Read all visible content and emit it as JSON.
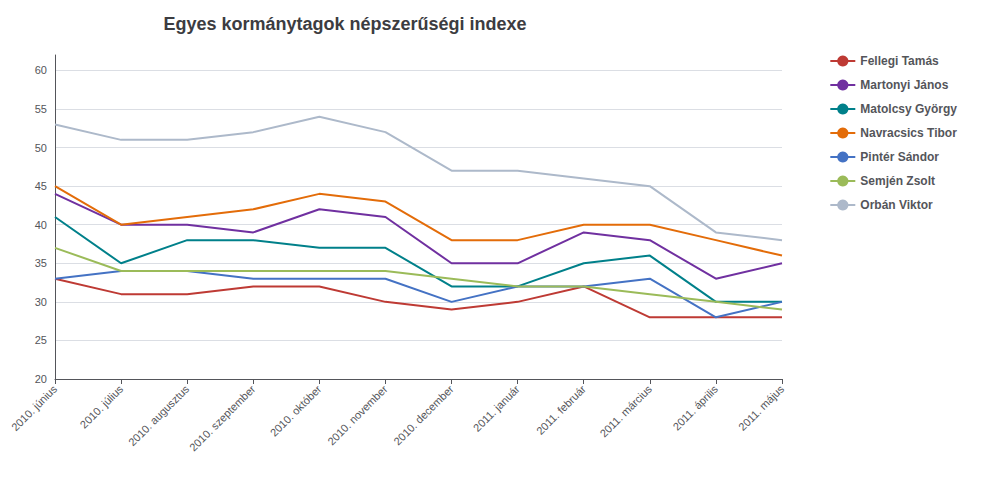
{
  "chart_data": {
    "type": "line",
    "title": "Egyes kormánytagok népszerűségi indexe",
    "categories": [
      "2010. június",
      "2010. július",
      "2010. augusztus",
      "2010. szeptember",
      "2010. október",
      "2010. november",
      "2010. december",
      "2011. január",
      "2011. február",
      "2011. március",
      "2011. április",
      "2011. május"
    ],
    "series": [
      {
        "name": "Fellegi Tamás",
        "color": "#be3a34",
        "values": [
          33,
          31,
          31,
          32,
          32,
          30,
          29,
          30,
          32,
          28,
          28,
          28
        ]
      },
      {
        "name": "Martonyi János",
        "color": "#7030a0",
        "values": [
          44,
          40,
          40,
          39,
          42,
          41,
          35,
          35,
          39,
          38,
          33,
          35
        ]
      },
      {
        "name": "Matolcsy György",
        "color": "#00808a",
        "values": [
          41,
          35,
          38,
          38,
          37,
          37,
          32,
          32,
          35,
          36,
          30,
          30
        ]
      },
      {
        "name": "Navracsics Tibor",
        "color": "#e36c09",
        "values": [
          45,
          40,
          41,
          42,
          44,
          43,
          38,
          38,
          40,
          40,
          38,
          36
        ]
      },
      {
        "name": "Pintér Sándor",
        "color": "#4472c4",
        "values": [
          33,
          34,
          34,
          33,
          33,
          33,
          30,
          32,
          32,
          33,
          28,
          30
        ]
      },
      {
        "name": "Semjén Zsolt",
        "color": "#9bbb59",
        "values": [
          37,
          34,
          34,
          34,
          34,
          34,
          33,
          32,
          32,
          31,
          30,
          29
        ]
      },
      {
        "name": "Orbán Viktor",
        "color": "#adb9ca",
        "values": [
          53,
          51,
          51,
          52,
          54,
          52,
          47,
          47,
          46,
          45,
          39,
          38
        ]
      }
    ],
    "ylim": [
      20,
      62
    ],
    "yticks": [
      20,
      25,
      30,
      35,
      40,
      45,
      50,
      55,
      60
    ],
    "grid": true,
    "legend": "right"
  }
}
